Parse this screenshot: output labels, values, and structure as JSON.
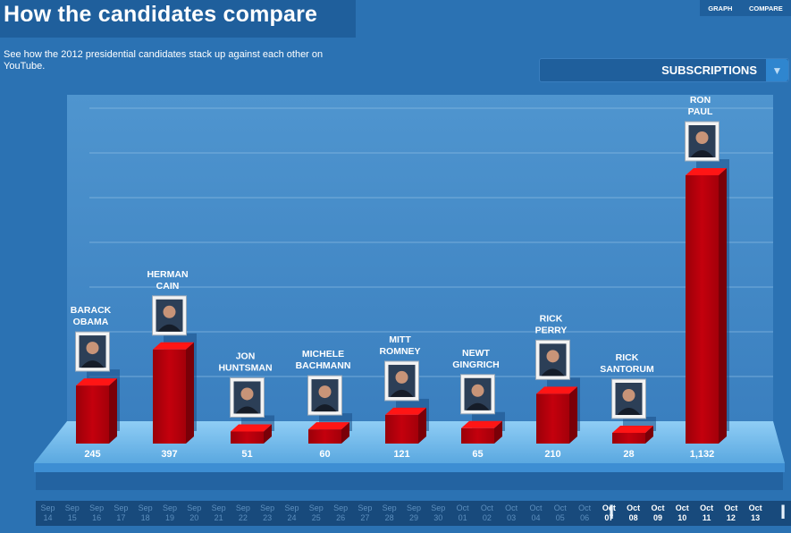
{
  "header": {
    "title": "How the candidates compare",
    "nav": [
      "GRAPH",
      "COMPARE"
    ],
    "subtitle": "See how the 2012 presidential candidates stack up against each other on YouTube."
  },
  "dropdown": {
    "label": "SUBSCRIPTIONS",
    "arrow_icon": "triangle-down-icon"
  },
  "colors": {
    "background": "#2b72b3",
    "bar_front": "#b3000b",
    "bar_top": "#ff1515",
    "bar_side": "#7a0008",
    "platform": "#6db8ec"
  },
  "chart_data": {
    "type": "bar",
    "title": "How the candidates compare",
    "metric": "SUBSCRIPTIONS",
    "categories": [
      [
        "BARACK",
        "OBAMA"
      ],
      [
        "HERMAN",
        "CAIN"
      ],
      [
        "JON",
        "HUNTSMAN"
      ],
      [
        "MICHELE",
        "BACHMANN"
      ],
      [
        "MITT",
        "ROMNEY"
      ],
      [
        "NEWT",
        "GINGRICH"
      ],
      [
        "RICK",
        "PERRY"
      ],
      [
        "RICK",
        "SANTORUM"
      ],
      [
        "RON",
        "PAUL"
      ]
    ],
    "values": [
      245,
      397,
      51,
      60,
      121,
      65,
      210,
      28,
      1132
    ],
    "value_labels": [
      "245",
      "397",
      "51",
      "60",
      "121",
      "65",
      "210",
      "28",
      "1,132"
    ],
    "ylim": [
      0,
      1300
    ],
    "grid": true
  },
  "timeline": {
    "dates": [
      [
        "Sep",
        "14"
      ],
      [
        "Sep",
        "15"
      ],
      [
        "Sep",
        "16"
      ],
      [
        "Sep",
        "17"
      ],
      [
        "Sep",
        "18"
      ],
      [
        "Sep",
        "19"
      ],
      [
        "Sep",
        "20"
      ],
      [
        "Sep",
        "21"
      ],
      [
        "Sep",
        "22"
      ],
      [
        "Sep",
        "23"
      ],
      [
        "Sep",
        "24"
      ],
      [
        "Sep",
        "25"
      ],
      [
        "Sep",
        "26"
      ],
      [
        "Sep",
        "27"
      ],
      [
        "Sep",
        "28"
      ],
      [
        "Sep",
        "29"
      ],
      [
        "Sep",
        "30"
      ],
      [
        "Oct",
        "01"
      ],
      [
        "Oct",
        "02"
      ],
      [
        "Oct",
        "03"
      ],
      [
        "Oct",
        "04"
      ],
      [
        "Oct",
        "05"
      ],
      [
        "Oct",
        "06"
      ],
      [
        "Oct",
        "07"
      ],
      [
        "Oct",
        "08"
      ],
      [
        "Oct",
        "09"
      ],
      [
        "Oct",
        "10"
      ],
      [
        "Oct",
        "11"
      ],
      [
        "Oct",
        "12"
      ],
      [
        "Oct",
        "13"
      ]
    ],
    "selected_range": [
      "Oct 07",
      "Oct 13"
    ]
  }
}
